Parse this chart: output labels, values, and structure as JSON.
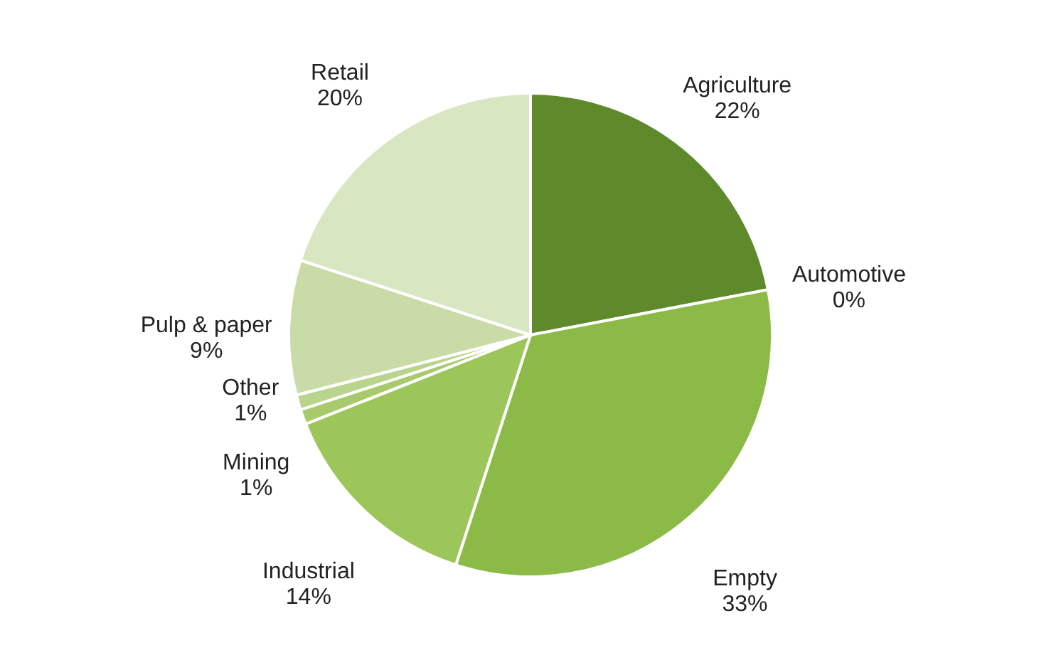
{
  "chart_data": {
    "type": "pie",
    "categories": [
      "Agriculture",
      "Automotive",
      "Empty",
      "Industrial",
      "Mining",
      "Other",
      "Pulp & paper",
      "Retail"
    ],
    "values": [
      22,
      0,
      33,
      14,
      1,
      1,
      9,
      20
    ],
    "value_labels": [
      "22%",
      "0%",
      "33%",
      "14%",
      "1%",
      "1%",
      "9%",
      "20%"
    ],
    "colors": [
      "#5e8a2c",
      "#77a83a",
      "#8cba47",
      "#9cc55a",
      "#a8ca6c",
      "#b9d48c",
      "#c9dca8",
      "#d9e6c2"
    ]
  }
}
